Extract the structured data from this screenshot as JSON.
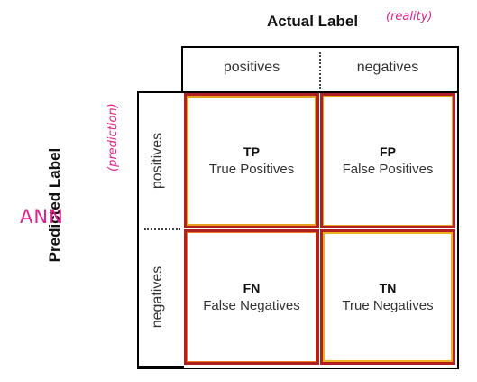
{
  "axes": {
    "actual_title": "Actual Label",
    "actual_note": "(reality)",
    "predicted_title": "Predicted Label",
    "predicted_note": "(prediction)"
  },
  "side_note": "ANN",
  "columns": [
    "positives",
    "negatives"
  ],
  "rows": [
    "positives",
    "negatives"
  ],
  "cells": {
    "tp": {
      "abbr": "TP",
      "full": "True Positives"
    },
    "fp": {
      "abbr": "FP",
      "full": "False Positives"
    },
    "fn": {
      "abbr": "FN",
      "full": "False Negatives"
    },
    "tn": {
      "abbr": "TN",
      "full": "True Negatives"
    }
  },
  "colors": {
    "annotation": "#e0208e",
    "cell_border": "#b02020",
    "cell_inner_border": "#e8a020"
  }
}
